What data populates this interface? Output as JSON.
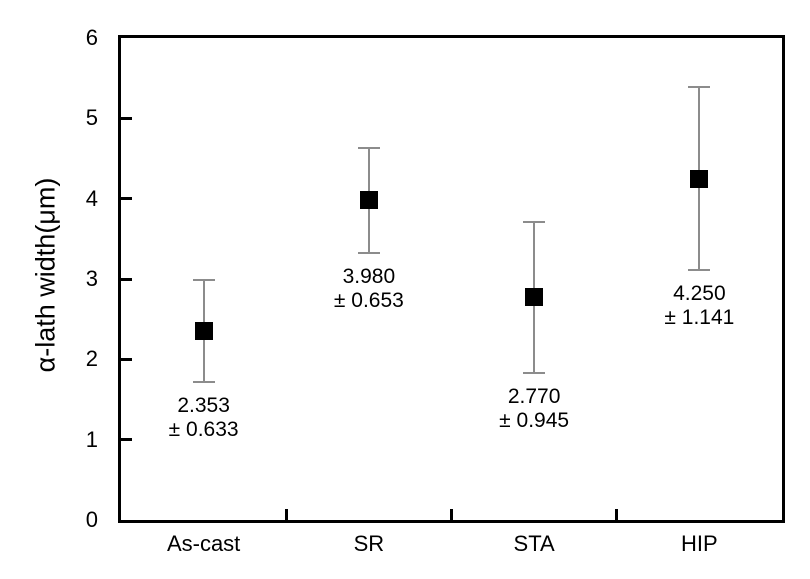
{
  "chart_data": {
    "type": "scatter",
    "title": "",
    "xlabel": "",
    "ylabel": "α-lath width(μm)",
    "categories": [
      "As-cast",
      "SR",
      "STA",
      "HIP"
    ],
    "series": [
      {
        "name": "alpha-lath-width",
        "marker": "filled-square",
        "means": [
          2.353,
          3.98,
          2.77,
          4.25
        ],
        "errors": [
          0.633,
          0.653,
          0.945,
          1.141
        ],
        "point_labels": [
          [
            "2.353",
            "± 0.633"
          ],
          [
            "3.980",
            "± 0.653"
          ],
          [
            "2.770",
            "± 0.945"
          ],
          [
            "4.250",
            "± 1.141"
          ]
        ]
      }
    ],
    "ylim": [
      0,
      6
    ],
    "yticks": [
      "0",
      "1",
      "2",
      "3",
      "4",
      "5",
      "6"
    ],
    "grid": false,
    "legend": null,
    "tick_direction": "in",
    "colors": {
      "marker": "#000000",
      "error_bar": "#8c8c8c",
      "axis": "#000000",
      "text": "#000000",
      "background": "#ffffff"
    }
  }
}
